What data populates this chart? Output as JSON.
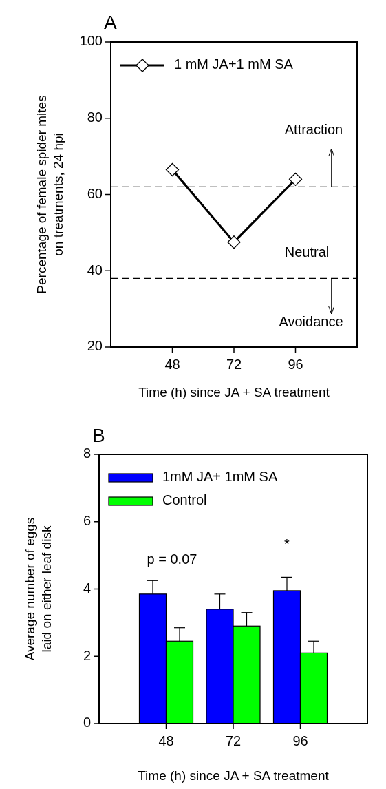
{
  "chart_data": [
    {
      "type": "line",
      "title": "A",
      "xlabel": "Time (h) since JA + SA treatment",
      "ylabel": "Percentage of female spider mites\non treatments, 24 hpi",
      "x": [
        48,
        72,
        96
      ],
      "xlim": [
        24,
        120
      ],
      "xticks": [
        48,
        72,
        96
      ],
      "ylim": [
        20,
        100
      ],
      "yticks": [
        20,
        40,
        60,
        80,
        100
      ],
      "marker": "diamond",
      "legend": "top left",
      "series": [
        {
          "name": "1 mM JA+1 mM SA",
          "color": "#000000",
          "values": [
            66.5,
            47.5,
            64
          ]
        }
      ],
      "ref_lines": [
        {
          "axis": "y",
          "value": 62,
          "line_style": "dashed"
        },
        {
          "axis": "y",
          "value": 38,
          "line_style": "dashed"
        }
      ],
      "annotations": [
        {
          "text": "Attraction",
          "x": 110,
          "y": 62
        },
        "Neutral",
        {
          "text": "Avoidance",
          "x": 110,
          "y": 38
        }
      ]
    },
    {
      "type": "bar",
      "title": "B",
      "xlabel": "Time (h) since JA + SA treatment",
      "ylabel": "Average number of eggs\nlaid on either leaf disk",
      "x": [
        48,
        72,
        96
      ],
      "xlim": [
        24,
        120
      ],
      "xticks": [
        48,
        72,
        96
      ],
      "ylim": [
        0,
        8
      ],
      "yticks": [
        0,
        2,
        4,
        6,
        8
      ],
      "legend": "top left",
      "series": [
        {
          "name": "1mM JA+ 1mM SA",
          "color": "#0000ff",
          "values": [
            3.85,
            3.4,
            3.95
          ],
          "errors": [
            [
              3.85,
              4.25
            ],
            [
              3.4,
              3.85
            ],
            [
              3.95,
              4.35
            ]
          ]
        },
        {
          "name": "Control",
          "color": "#00ff00",
          "values": [
            2.45,
            2.9,
            2.1
          ],
          "errors": [
            [
              2.45,
              2.85
            ],
            [
              2.9,
              3.3
            ],
            [
              2.1,
              2.45
            ]
          ]
        }
      ],
      "annotations": [
        "p = 0.07",
        "*"
      ]
    }
  ]
}
